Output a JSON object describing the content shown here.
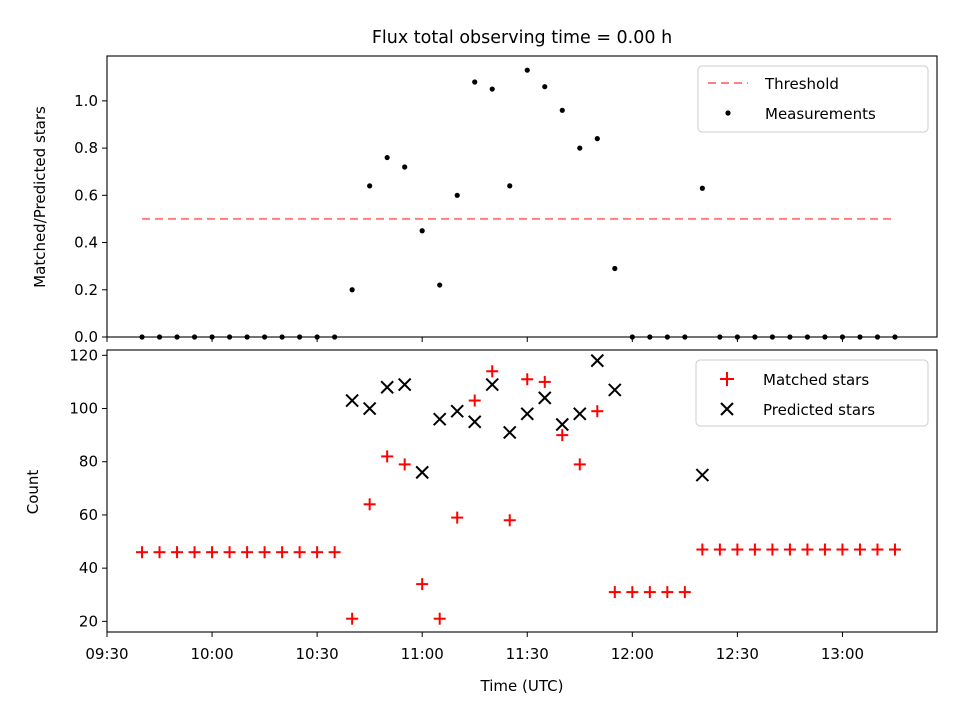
{
  "figure": {
    "title": "Flux total observing time = 0.00 h",
    "xlabel": "Time (UTC)",
    "x_ticks": [
      {
        "t": "09:30",
        "label": "09:30"
      },
      {
        "t": "10:00",
        "label": "10:00"
      },
      {
        "t": "10:30",
        "label": "10:30"
      },
      {
        "t": "11:00",
        "label": "11:00"
      },
      {
        "t": "11:30",
        "label": "11:30"
      },
      {
        "t": "12:00",
        "label": "12:00"
      },
      {
        "t": "12:30",
        "label": "12:30"
      },
      {
        "t": "13:00",
        "label": "13:00"
      }
    ],
    "xlim": [
      "09:30",
      "13:27"
    ]
  },
  "chart_data": [
    {
      "type": "scatter",
      "panel": "top",
      "ylabel": "Matched/Predicted stars",
      "ylim": [
        0,
        1.19
      ],
      "y_ticks": [
        0.0,
        0.2,
        0.4,
        0.6,
        0.8,
        1.0
      ],
      "grid": false,
      "legend": "top-right",
      "threshold": {
        "name": "Threshold",
        "y": 0.5,
        "x_start": "09:40",
        "x_end": "13:15",
        "color": "#ff7f7f"
      },
      "series": [
        {
          "name": "Measurements",
          "color": "#000000",
          "marker": "dot",
          "x": [
            "09:40",
            "09:45",
            "09:50",
            "09:55",
            "10:00",
            "10:05",
            "10:10",
            "10:15",
            "10:20",
            "10:25",
            "10:30",
            "10:35",
            "10:40",
            "10:45",
            "10:50",
            "10:55",
            "11:00",
            "11:05",
            "11:10",
            "11:15",
            "11:20",
            "11:25",
            "11:30",
            "11:35",
            "11:40",
            "11:45",
            "11:50",
            "11:55",
            "12:00",
            "12:05",
            "12:10",
            "12:15",
            "12:20",
            "12:25",
            "12:30",
            "12:35",
            "12:40",
            "12:45",
            "12:50",
            "12:55",
            "13:00",
            "13:05",
            "13:10",
            "13:15"
          ],
          "y": [
            0,
            0,
            0,
            0,
            0,
            0,
            0,
            0,
            0,
            0,
            0,
            0,
            0.2,
            0.64,
            0.76,
            0.72,
            0.45,
            0.22,
            0.6,
            1.08,
            1.05,
            0.64,
            1.13,
            1.06,
            0.96,
            0.8,
            0.84,
            0.29,
            0,
            0,
            0,
            0,
            0.63,
            0,
            0,
            0,
            0,
            0,
            0,
            0,
            0,
            0,
            0,
            0
          ]
        }
      ]
    },
    {
      "type": "scatter",
      "panel": "bottom",
      "ylabel": "Count",
      "ylim": [
        16,
        122
      ],
      "y_ticks": [
        20,
        40,
        60,
        80,
        100,
        120
      ],
      "grid": false,
      "legend": "top-right",
      "series": [
        {
          "name": "Matched stars",
          "color": "#ff0000",
          "marker": "plus",
          "x": [
            "09:40",
            "09:45",
            "09:50",
            "09:55",
            "10:00",
            "10:05",
            "10:10",
            "10:15",
            "10:20",
            "10:25",
            "10:30",
            "10:35",
            "10:40",
            "10:45",
            "10:50",
            "10:55",
            "11:00",
            "11:05",
            "11:10",
            "11:15",
            "11:20",
            "11:25",
            "11:30",
            "11:35",
            "11:40",
            "11:45",
            "11:50",
            "11:55",
            "12:00",
            "12:05",
            "12:10",
            "12:15",
            "12:20",
            "12:25",
            "12:30",
            "12:35",
            "12:40",
            "12:45",
            "12:50",
            "12:55",
            "13:00",
            "13:05",
            "13:10",
            "13:15"
          ],
          "y": [
            46,
            46,
            46,
            46,
            46,
            46,
            46,
            46,
            46,
            46,
            46,
            46,
            21,
            64,
            82,
            79,
            34,
            21,
            59,
            103,
            114,
            58,
            111,
            110,
            90,
            79,
            99,
            31,
            31,
            31,
            31,
            31,
            47,
            47,
            47,
            47,
            47,
            47,
            47,
            47,
            47,
            47,
            47,
            47
          ]
        },
        {
          "name": "Predicted stars",
          "color": "#000000",
          "marker": "x",
          "x": [
            "10:40",
            "10:45",
            "10:50",
            "10:55",
            "11:00",
            "11:05",
            "11:10",
            "11:15",
            "11:20",
            "11:25",
            "11:30",
            "11:35",
            "11:40",
            "11:45",
            "11:50",
            "11:55",
            "12:20"
          ],
          "y": [
            103,
            100,
            108,
            109,
            76,
            96,
            99,
            95,
            109,
            91,
            98,
            104,
            94,
            98,
            118,
            107,
            75
          ]
        }
      ]
    }
  ]
}
